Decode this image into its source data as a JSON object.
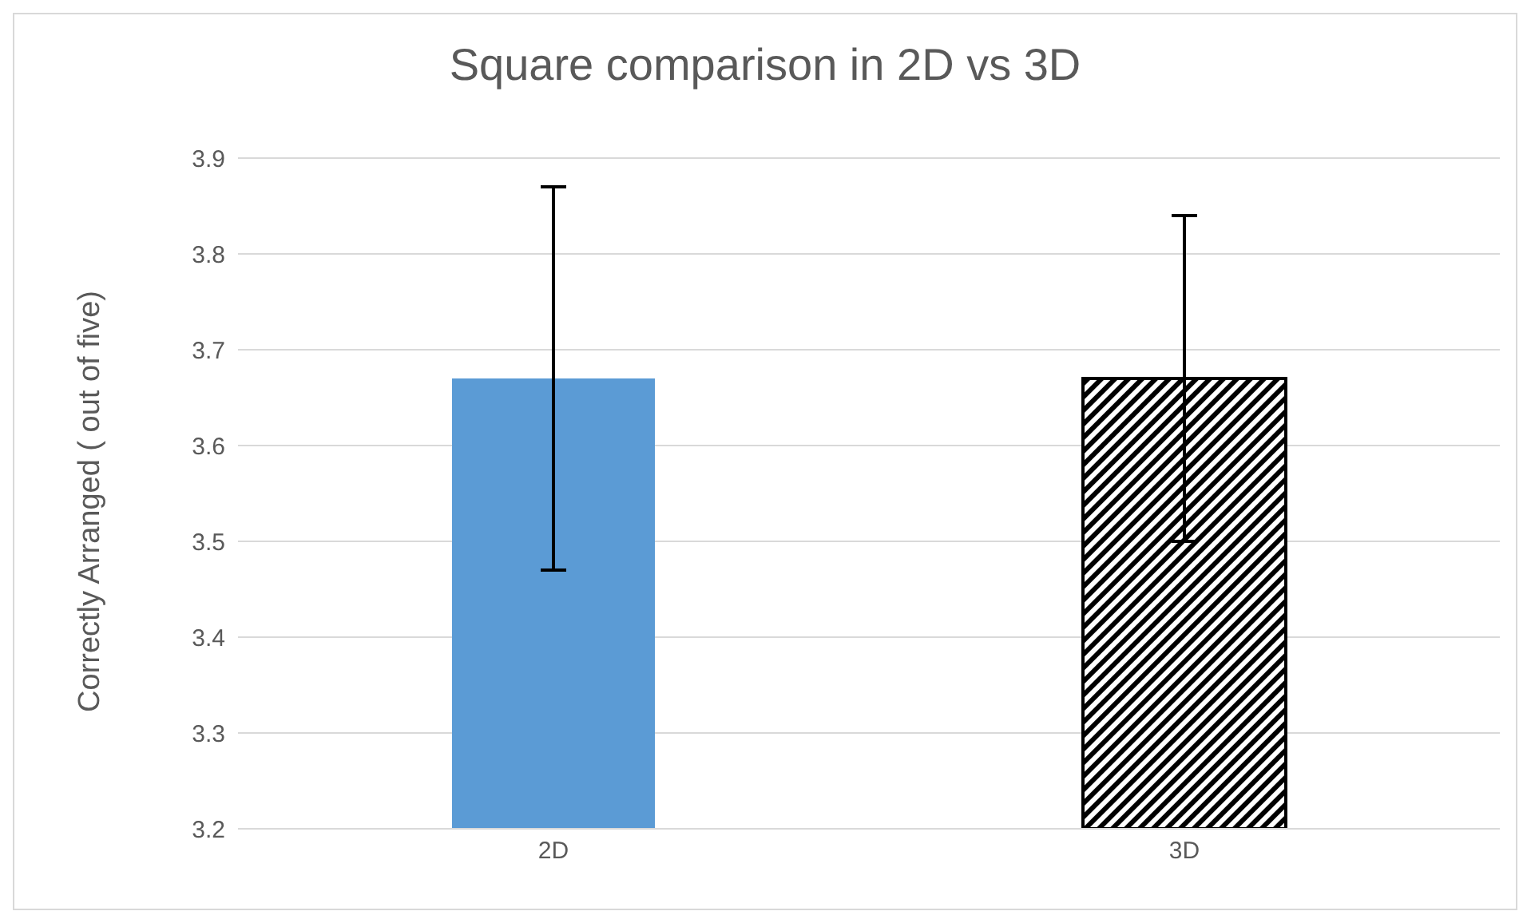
{
  "chart_data": {
    "type": "bar",
    "title": "Square comparison in 2D vs 3D",
    "ylabel": "Correctly Arranged ( out of five)",
    "categories": [
      "2D",
      "3D"
    ],
    "values": [
      3.67,
      3.67
    ],
    "errors": [
      0.2,
      0.17
    ],
    "colors": [
      "#5b9bd5",
      "#000000"
    ],
    "ylim": [
      3.2,
      3.9
    ],
    "yticks": [
      3.2,
      3.3,
      3.4,
      3.5,
      3.6,
      3.7,
      3.8,
      3.9
    ],
    "grid": "y"
  }
}
